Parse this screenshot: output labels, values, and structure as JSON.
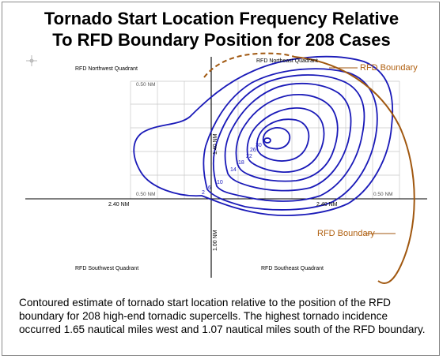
{
  "title": {
    "line1": "Tornado Start Location Frequency Relative",
    "line2": "To RFD Boundary Position for 208 Cases"
  },
  "quadrants": {
    "northwest": "RFD Northwest Quadrant",
    "northeast": "RFD Northeast Quadrant",
    "southwest": "RFD Southwest Quadrant",
    "southeast": "RFD Southeast Quadrant"
  },
  "grid_labels": {
    "top": "0.50 NM",
    "left": "0.50 NM",
    "right": "0.50 NM"
  },
  "axis_labels": {
    "west": "2.40 NM",
    "east": "2.40 NM",
    "north": "1.40 NM",
    "south": "1.00 NM"
  },
  "contour_labels": [
    "2",
    "6",
    "10",
    "14",
    "18",
    "22",
    "26",
    "30"
  ],
  "rfd_labels": {
    "upper": "RFD Boundary",
    "lower": "RFD Boundary"
  },
  "caption": "Contoured estimate of tornado start location relative to the position of the RFD boundary for 208 high-end tornadic supercells.  The highest tornado incidence occurred 1.65 nautical miles west and 1.07 nautical miles south of the RFD boundary.",
  "colors": {
    "contour": "#1a1ab8",
    "rfd": "#a0570f",
    "grid": "#c8c8c8",
    "axis": "#000000"
  },
  "icons": {
    "compass": "compass-rose-icon"
  }
}
